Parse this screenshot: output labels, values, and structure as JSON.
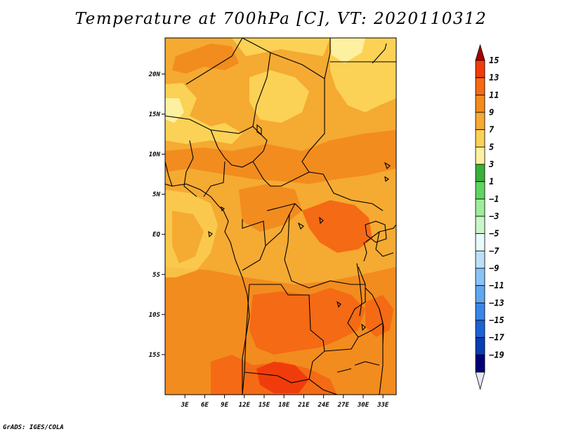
{
  "title": "Temperature at 700hPa [C], VT: 2020110312",
  "credit": "GrADS: IGES/COLA",
  "map": {
    "lon_labels": [
      "3E",
      "6E",
      "9E",
      "12E",
      "15E",
      "18E",
      "21E",
      "24E",
      "27E",
      "30E",
      "33E"
    ],
    "lat_labels": [
      "20N",
      "15N",
      "10N",
      "5N",
      "EQ",
      "5S",
      "10S",
      "15S"
    ],
    "lon_range": [
      0,
      35
    ],
    "lat_range": [
      -20,
      24.5
    ]
  },
  "colorbar": {
    "labels": [
      "15",
      "13",
      "11",
      "9",
      "7",
      "5",
      "3",
      "1",
      "−1",
      "−3",
      "−5",
      "−7",
      "−9",
      "−11",
      "−13",
      "−15",
      "−17",
      "−19"
    ],
    "colors": [
      "#a50000",
      "#f03c0a",
      "#f56a14",
      "#f28c1e",
      "#f5aa32",
      "#fbd255",
      "#fdf0a0",
      "#38b03a",
      "#5fd45f",
      "#9cec9c",
      "#c9f6c9",
      "#e8fbf8",
      "#bde0f8",
      "#89c3f5",
      "#5ea8f0",
      "#3a86e6",
      "#1c62d2",
      "#0a3cb4",
      "#000078",
      "#e6e6f5"
    ]
  }
}
